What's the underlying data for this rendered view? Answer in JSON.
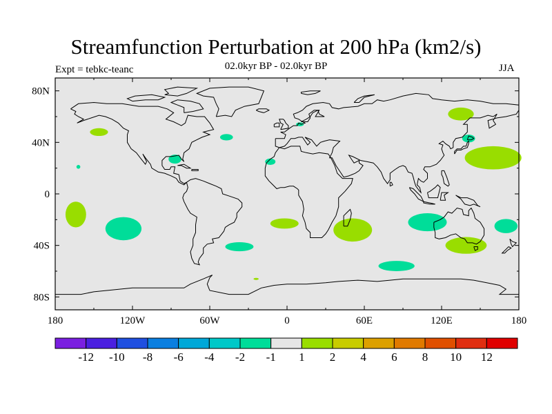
{
  "header": {
    "title": "Streamfunction Perturbation at 200 hPa (km2/s)",
    "subtitle": "02.0kyr BP - 02.0kyr BP",
    "expt": "Expt = tebkc-teanc",
    "season": "JJA"
  },
  "map": {
    "projection": "cylindrical-equidistant",
    "lon_range": [
      -180,
      180
    ],
    "lat_range": [
      -90,
      90
    ],
    "ocean_color": "#e6e6e6",
    "coast_color": "#000000",
    "lon_ticks": [
      {
        "lon": -180,
        "label": "180"
      },
      {
        "lon": -120,
        "label": "120W"
      },
      {
        "lon": -60,
        "label": "60W"
      },
      {
        "lon": 0,
        "label": "0"
      },
      {
        "lon": 60,
        "label": "60E"
      },
      {
        "lon": 120,
        "label": "120E"
      },
      {
        "lon": 180,
        "label": "180"
      }
    ],
    "lat_ticks": [
      {
        "lat": 80,
        "label": "80N"
      },
      {
        "lat": 40,
        "label": "40N"
      },
      {
        "lat": 0,
        "label": "0"
      },
      {
        "lat": -40,
        "label": "40S"
      },
      {
        "lat": -80,
        "label": "80S"
      }
    ]
  },
  "chart_data": {
    "type": "heatmap",
    "title": "Streamfunction Perturbation at 200 hPa (km2/s)",
    "variable": "streamfunction perturbation",
    "level": "200 hPa",
    "units": "km2/s",
    "anomaly_patches": [
      {
        "lon": -146,
        "lat": 48,
        "rlon": 7,
        "rlat": 3,
        "color": "#99dd00"
      },
      {
        "lon": -47,
        "lat": 44,
        "rlon": 5,
        "rlat": 2.5,
        "color": "#00dd99"
      },
      {
        "lon": -162,
        "lat": 21,
        "rlon": 1.5,
        "rlat": 1.5,
        "color": "#00dd99"
      },
      {
        "lon": -87,
        "lat": 27,
        "rlon": 5,
        "rlat": 3.5,
        "color": "#00dd99"
      },
      {
        "lon": -13,
        "lat": 25,
        "rlon": 4,
        "rlat": 2.5,
        "color": "#00dd99"
      },
      {
        "lon": 10,
        "lat": 54,
        "rlon": 3,
        "rlat": 1.5,
        "color": "#00dd99"
      },
      {
        "lon": 135,
        "lat": 62,
        "rlon": 10,
        "rlat": 5,
        "color": "#99dd00"
      },
      {
        "lon": 141,
        "lat": 43,
        "rlon": 5,
        "rlat": 3,
        "color": "#00dd99"
      },
      {
        "lon": 160,
        "lat": 28,
        "rlon": 22,
        "rlat": 9,
        "color": "#99dd00"
      },
      {
        "lon": -164,
        "lat": -16,
        "rlon": 8,
        "rlat": 10,
        "color": "#99dd00"
      },
      {
        "lon": -127,
        "lat": -27,
        "rlon": 14,
        "rlat": 9,
        "color": "#00dd99"
      },
      {
        "lon": -37,
        "lat": -41,
        "rlon": 11,
        "rlat": 3.5,
        "color": "#00dd99"
      },
      {
        "lon": -2,
        "lat": -23,
        "rlon": 11,
        "rlat": 4,
        "color": "#99dd00"
      },
      {
        "lon": 51,
        "lat": -28,
        "rlon": 15,
        "rlat": 9,
        "color": "#99dd00"
      },
      {
        "lon": 109,
        "lat": -22,
        "rlon": 15,
        "rlat": 7,
        "color": "#00dd99"
      },
      {
        "lon": 139,
        "lat": -40,
        "rlon": 16,
        "rlat": 6.5,
        "color": "#99dd00"
      },
      {
        "lon": 170,
        "lat": -25,
        "rlon": 9,
        "rlat": 5.5,
        "color": "#00dd99"
      },
      {
        "lon": 85,
        "lat": -56,
        "rlon": 14,
        "rlat": 4,
        "color": "#00dd99"
      },
      {
        "lon": -24,
        "lat": -66,
        "rlon": 2,
        "rlat": 0.8,
        "color": "#99dd00"
      }
    ]
  },
  "colorbar": {
    "colors": [
      "#7a1fe0",
      "#4a1fe0",
      "#1f4fe0",
      "#0a7fe0",
      "#00a8d8",
      "#00c8c8",
      "#00dd99",
      "#e6e6e6",
      "#99dd00",
      "#c8cc00",
      "#dca000",
      "#e07a00",
      "#e05000",
      "#e02e10",
      "#e00000"
    ],
    "labels": [
      "-12",
      "-10",
      "-8",
      "-6",
      "-4",
      "-2",
      "-1",
      "1",
      "2",
      "4",
      "6",
      "8",
      "10",
      "12"
    ]
  }
}
